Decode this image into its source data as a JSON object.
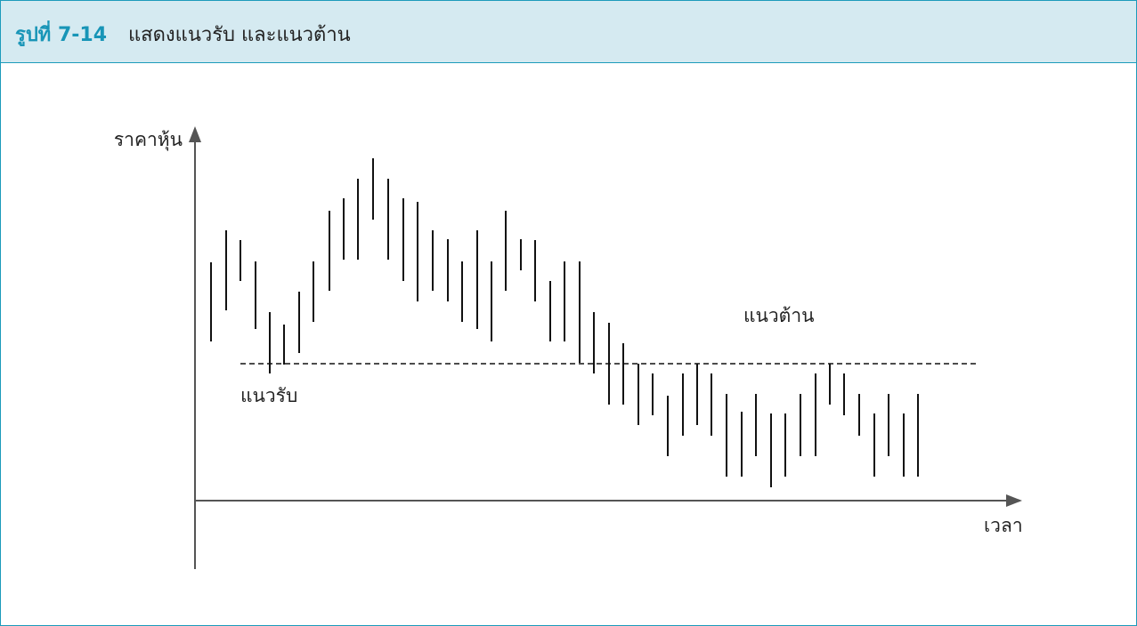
{
  "header": {
    "label": "รูปที่ 7-14",
    "title": "แสดงแนวรับ และแนวต้าน"
  },
  "diagram": {
    "y_axis_label": "ราคาหุ้น",
    "x_axis_label": "เวลา",
    "resistance_label": "แนวต้าน",
    "support_label": "แนวรับ"
  }
}
